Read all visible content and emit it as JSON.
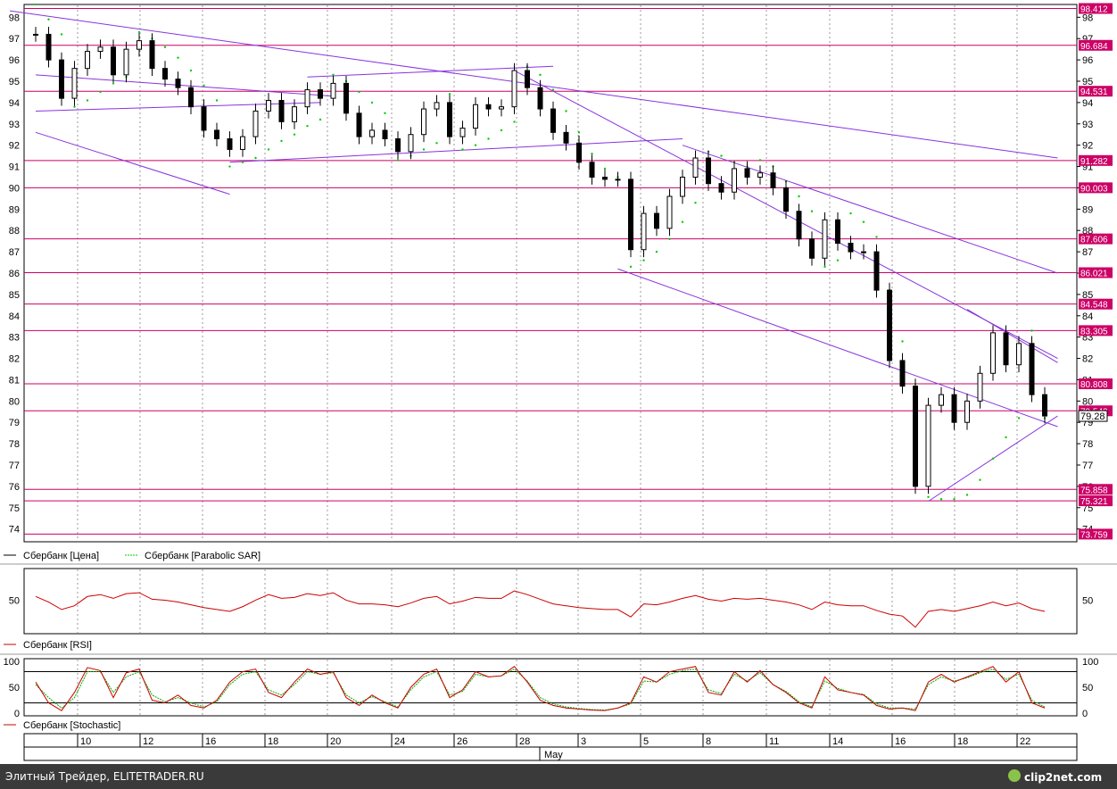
{
  "chart_data": [
    {
      "type": "candlestick",
      "symbol": "Сбербанк",
      "ylim": [
        73.4,
        98.6
      ],
      "y_ticks": [
        74,
        75,
        76,
        77,
        78,
        79,
        80,
        81,
        82,
        83,
        84,
        85,
        86,
        87,
        88,
        89,
        90,
        91,
        92,
        93,
        94,
        95,
        96,
        97,
        98
      ],
      "levels": [
        {
          "value": 98.412,
          "label": "98.412"
        },
        {
          "value": 96.684,
          "label": "96.684"
        },
        {
          "value": 94.531,
          "label": "94.531"
        },
        {
          "value": 91.282,
          "label": "91.282"
        },
        {
          "value": 90.003,
          "label": "90.003"
        },
        {
          "value": 87.606,
          "label": "87.606"
        },
        {
          "value": 86.021,
          "label": "86.021"
        },
        {
          "value": 84.548,
          "label": "84.548"
        },
        {
          "value": 83.305,
          "label": "83.305"
        },
        {
          "value": 80.808,
          "label": "80.808"
        },
        {
          "value": 79.542,
          "label": "79.542"
        },
        {
          "value": 75.858,
          "label": "75.858"
        },
        {
          "value": 75.321,
          "label": "75.321"
        },
        {
          "value": 73.759,
          "label": "73.759"
        }
      ],
      "last_price_label": "79.28",
      "x_dates": [
        "10",
        "12",
        "16",
        "18",
        "20",
        "24",
        "26",
        "28",
        "3",
        "5",
        "8",
        "11",
        "14",
        "16",
        "18",
        "22"
      ],
      "x_month_label": "May",
      "price_series": [
        {
          "x": 0,
          "y": 97.2
        },
        {
          "x": 1,
          "y": 96.0
        },
        {
          "x": 2,
          "y": 94.2
        },
        {
          "x": 3,
          "y": 95.6
        },
        {
          "x": 4,
          "y": 96.4
        },
        {
          "x": 5,
          "y": 96.6
        },
        {
          "x": 6,
          "y": 95.3
        },
        {
          "x": 7,
          "y": 96.5
        },
        {
          "x": 8,
          "y": 96.9
        },
        {
          "x": 9,
          "y": 95.6
        },
        {
          "x": 10,
          "y": 95.1
        },
        {
          "x": 11,
          "y": 94.7
        },
        {
          "x": 12,
          "y": 93.8
        },
        {
          "x": 13,
          "y": 92.7
        },
        {
          "x": 14,
          "y": 92.3
        },
        {
          "x": 15,
          "y": 91.8
        },
        {
          "x": 16,
          "y": 92.4
        },
        {
          "x": 17,
          "y": 93.6
        },
        {
          "x": 18,
          "y": 94.1
        },
        {
          "x": 19,
          "y": 93.1
        },
        {
          "x": 20,
          "y": 93.8
        },
        {
          "x": 21,
          "y": 94.6
        },
        {
          "x": 22,
          "y": 94.2
        },
        {
          "x": 23,
          "y": 94.9
        },
        {
          "x": 24,
          "y": 93.5
        },
        {
          "x": 25,
          "y": 92.4
        },
        {
          "x": 26,
          "y": 92.7
        },
        {
          "x": 27,
          "y": 92.3
        },
        {
          "x": 28,
          "y": 91.7
        },
        {
          "x": 29,
          "y": 92.5
        },
        {
          "x": 30,
          "y": 93.7
        },
        {
          "x": 31,
          "y": 94.0
        },
        {
          "x": 32,
          "y": 92.4
        },
        {
          "x": 33,
          "y": 92.8
        },
        {
          "x": 34,
          "y": 93.9
        },
        {
          "x": 35,
          "y": 93.7
        },
        {
          "x": 36,
          "y": 93.8
        },
        {
          "x": 37,
          "y": 95.5
        },
        {
          "x": 38,
          "y": 94.7
        },
        {
          "x": 39,
          "y": 93.7
        },
        {
          "x": 40,
          "y": 92.6
        },
        {
          "x": 41,
          "y": 92.1
        },
        {
          "x": 42,
          "y": 91.2
        },
        {
          "x": 43,
          "y": 90.5
        },
        {
          "x": 44,
          "y": 90.4
        },
        {
          "x": 45,
          "y": 90.4
        },
        {
          "x": 46,
          "y": 87.1
        },
        {
          "x": 47,
          "y": 88.8
        },
        {
          "x": 48,
          "y": 88.1
        },
        {
          "x": 49,
          "y": 89.6
        },
        {
          "x": 50,
          "y": 90.5
        },
        {
          "x": 51,
          "y": 91.4
        },
        {
          "x": 52,
          "y": 90.2
        },
        {
          "x": 53,
          "y": 89.8
        },
        {
          "x": 54,
          "y": 90.9
        },
        {
          "x": 55,
          "y": 90.5
        },
        {
          "x": 56,
          "y": 90.7
        },
        {
          "x": 57,
          "y": 90.0
        },
        {
          "x": 58,
          "y": 88.9
        },
        {
          "x": 59,
          "y": 87.6
        },
        {
          "x": 60,
          "y": 86.7
        },
        {
          "x": 61,
          "y": 88.5
        },
        {
          "x": 62,
          "y": 87.4
        },
        {
          "x": 63,
          "y": 87.0
        },
        {
          "x": 64,
          "y": 87.0
        },
        {
          "x": 65,
          "y": 85.2
        },
        {
          "x": 66,
          "y": 81.9
        },
        {
          "x": 67,
          "y": 80.7
        },
        {
          "x": 68,
          "y": 76.0
        },
        {
          "x": 69,
          "y": 79.8
        },
        {
          "x": 70,
          "y": 80.3
        },
        {
          "x": 71,
          "y": 79.0
        },
        {
          "x": 72,
          "y": 80.0
        },
        {
          "x": 73,
          "y": 81.3
        },
        {
          "x": 74,
          "y": 83.2
        },
        {
          "x": 75,
          "y": 81.7
        },
        {
          "x": 76,
          "y": 82.7
        },
        {
          "x": 77,
          "y": 80.3
        },
        {
          "x": 78,
          "y": 79.3
        }
      ],
      "parabolic_sar": [
        {
          "x": 0,
          "y": 98.6
        },
        {
          "x": 1,
          "y": 97.9
        },
        {
          "x": 2,
          "y": 97.2
        },
        {
          "x": 3,
          "y": 93.8
        },
        {
          "x": 4,
          "y": 94.1
        },
        {
          "x": 5,
          "y": 94.5
        },
        {
          "x": 6,
          "y": 94.9
        },
        {
          "x": 7,
          "y": 95.2
        },
        {
          "x": 8,
          "y": 97.3
        },
        {
          "x": 9,
          "y": 97.0
        },
        {
          "x": 10,
          "y": 96.6
        },
        {
          "x": 11,
          "y": 96.1
        },
        {
          "x": 12,
          "y": 95.5
        },
        {
          "x": 13,
          "y": 94.8
        },
        {
          "x": 14,
          "y": 94.1
        },
        {
          "x": 15,
          "y": 91.0
        },
        {
          "x": 16,
          "y": 91.2
        },
        {
          "x": 17,
          "y": 91.4
        },
        {
          "x": 18,
          "y": 91.8
        },
        {
          "x": 19,
          "y": 92.2
        },
        {
          "x": 20,
          "y": 92.5
        },
        {
          "x": 21,
          "y": 92.9
        },
        {
          "x": 22,
          "y": 93.2
        },
        {
          "x": 23,
          "y": 95.3
        },
        {
          "x": 24,
          "y": 95.0
        },
        {
          "x": 25,
          "y": 94.5
        },
        {
          "x": 26,
          "y": 94.0
        },
        {
          "x": 27,
          "y": 93.5
        },
        {
          "x": 28,
          "y": 91.3
        },
        {
          "x": 29,
          "y": 91.5
        },
        {
          "x": 30,
          "y": 91.8
        },
        {
          "x": 31,
          "y": 92.1
        },
        {
          "x": 32,
          "y": 94.4
        },
        {
          "x": 33,
          "y": 91.8
        },
        {
          "x": 34,
          "y": 92.0
        },
        {
          "x": 35,
          "y": 92.3
        },
        {
          "x": 36,
          "y": 92.7
        },
        {
          "x": 37,
          "y": 93.1
        },
        {
          "x": 38,
          "y": 95.7
        },
        {
          "x": 39,
          "y": 95.3
        },
        {
          "x": 40,
          "y": 94.6
        },
        {
          "x": 41,
          "y": 93.6
        },
        {
          "x": 42,
          "y": 92.6
        },
        {
          "x": 43,
          "y": 91.6
        },
        {
          "x": 44,
          "y": 90.9
        },
        {
          "x": 45,
          "y": 90.5
        },
        {
          "x": 46,
          "y": 86.3
        },
        {
          "x": 47,
          "y": 86.6
        },
        {
          "x": 48,
          "y": 87.0
        },
        {
          "x": 49,
          "y": 87.6
        },
        {
          "x": 50,
          "y": 88.4
        },
        {
          "x": 51,
          "y": 89.3
        },
        {
          "x": 52,
          "y": 91.7
        },
        {
          "x": 53,
          "y": 91.5
        },
        {
          "x": 54,
          "y": 91.2
        },
        {
          "x": 55,
          "y": 91.0
        },
        {
          "x": 56,
          "y": 91.3
        },
        {
          "x": 57,
          "y": 91.0
        },
        {
          "x": 58,
          "y": 90.3
        },
        {
          "x": 59,
          "y": 89.6
        },
        {
          "x": 60,
          "y": 88.9
        },
        {
          "x": 61,
          "y": 86.3
        },
        {
          "x": 62,
          "y": 86.6
        },
        {
          "x": 63,
          "y": 88.8
        },
        {
          "x": 64,
          "y": 88.4
        },
        {
          "x": 65,
          "y": 87.7
        },
        {
          "x": 66,
          "y": 85.2
        },
        {
          "x": 67,
          "y": 82.8
        },
        {
          "x": 68,
          "y": 80.8
        },
        {
          "x": 69,
          "y": 75.5
        },
        {
          "x": 70,
          "y": 75.4
        },
        {
          "x": 71,
          "y": 75.4
        },
        {
          "x": 72,
          "y": 75.6
        },
        {
          "x": 73,
          "y": 76.3
        },
        {
          "x": 74,
          "y": 77.3
        },
        {
          "x": 75,
          "y": 78.3
        },
        {
          "x": 76,
          "y": 79.2
        },
        {
          "x": 77,
          "y": 83.3
        },
        {
          "x": 78,
          "y": 79.2
        }
      ],
      "trend_lines": [
        {
          "x1": -2,
          "y1": 98.3,
          "x2": 79,
          "y2": 91.4
        },
        {
          "x1": 0,
          "y1": 95.3,
          "x2": 23,
          "y2": 94.3
        },
        {
          "x1": 0,
          "y1": 92.6,
          "x2": 15,
          "y2": 89.7
        },
        {
          "x1": 0,
          "y1": 93.6,
          "x2": 22,
          "y2": 94.0
        },
        {
          "x1": 15,
          "y1": 91.2,
          "x2": 50,
          "y2": 92.3
        },
        {
          "x1": 21,
          "y1": 95.2,
          "x2": 40,
          "y2": 95.7
        },
        {
          "x1": 37,
          "y1": 95.5,
          "x2": 79,
          "y2": 82.0
        },
        {
          "x1": 45,
          "y1": 86.2,
          "x2": 79,
          "y2": 78.8
        },
        {
          "x1": 50,
          "y1": 92.0,
          "x2": 79,
          "y2": 86.0
        },
        {
          "x1": 69,
          "y1": 75.3,
          "x2": 79,
          "y2": 79.3
        },
        {
          "x1": 72,
          "y1": 84.3,
          "x2": 79,
          "y2": 81.8
        }
      ],
      "legend": [
        "Сбербанк [Цена]",
        "Сбербанк [Parabolic SAR]"
      ]
    },
    {
      "type": "line",
      "name": "Сбербанк [RSI]",
      "ylim": [
        14,
        84
      ],
      "y_ticks": [
        50
      ],
      "values": [
        54,
        48,
        40,
        44,
        54,
        56,
        52,
        57,
        58,
        51,
        50,
        48,
        45,
        42,
        40,
        38,
        43,
        50,
        56,
        52,
        53,
        57,
        55,
        58,
        50,
        46,
        46,
        45,
        43,
        47,
        52,
        54,
        46,
        49,
        53,
        52,
        52,
        60,
        56,
        51,
        46,
        44,
        42,
        41,
        40,
        40,
        32,
        46,
        45,
        48,
        52,
        55,
        51,
        49,
        52,
        51,
        52,
        50,
        48,
        45,
        40,
        48,
        45,
        44,
        44,
        39,
        35,
        33,
        21,
        38,
        40,
        38,
        41,
        44,
        48,
        44,
        47,
        41,
        38
      ]
    },
    {
      "type": "line",
      "name": "Сбербанк [Stochastic]",
      "ylim": [
        -5,
        105
      ],
      "y_ticks": [
        100,
        50,
        0
      ],
      "reference_lines": [
        80,
        20
      ],
      "values": [
        60,
        20,
        5,
        40,
        88,
        82,
        30,
        78,
        85,
        25,
        20,
        35,
        15,
        10,
        25,
        60,
        80,
        85,
        40,
        30,
        60,
        85,
        75,
        80,
        30,
        15,
        35,
        20,
        10,
        50,
        75,
        85,
        30,
        45,
        80,
        70,
        72,
        90,
        60,
        25,
        15,
        10,
        8,
        6,
        5,
        10,
        20,
        70,
        60,
        80,
        85,
        90,
        40,
        35,
        80,
        60,
        82,
        55,
        40,
        20,
        10,
        70,
        45,
        40,
        35,
        15,
        8,
        10,
        5,
        60,
        75,
        60,
        70,
        80,
        90,
        60,
        80,
        20,
        10
      ],
      "signal_values": [
        55,
        30,
        10,
        30,
        80,
        80,
        40,
        70,
        80,
        35,
        22,
        30,
        20,
        12,
        22,
        55,
        75,
        80,
        45,
        35,
        55,
        80,
        75,
        78,
        35,
        20,
        32,
        22,
        12,
        45,
        70,
        80,
        35,
        42,
        75,
        70,
        72,
        85,
        62,
        30,
        18,
        12,
        9,
        7,
        6,
        10,
        18,
        62,
        60,
        75,
        82,
        85,
        45,
        38,
        75,
        62,
        78,
        55,
        42,
        22,
        12,
        62,
        48,
        40,
        36,
        18,
        10,
        10,
        8,
        55,
        70,
        62,
        68,
        78,
        85,
        65,
        75,
        25,
        12
      ]
    }
  ],
  "footer": {
    "left_text": "Элитный Трейдер, ELITETRADER.RU",
    "right_text": "clip2net.com"
  },
  "colors": {
    "candle": "#000000",
    "sar": "#00cc00",
    "level_line": "#cc0066",
    "level_label_bg": "#cc0066",
    "trend_line": "#8833dd",
    "rsi": "#cc0000",
    "stoch": "#cc0000",
    "stoch_signal": "#00aa00",
    "footer_bg": "#3a3a3a"
  }
}
